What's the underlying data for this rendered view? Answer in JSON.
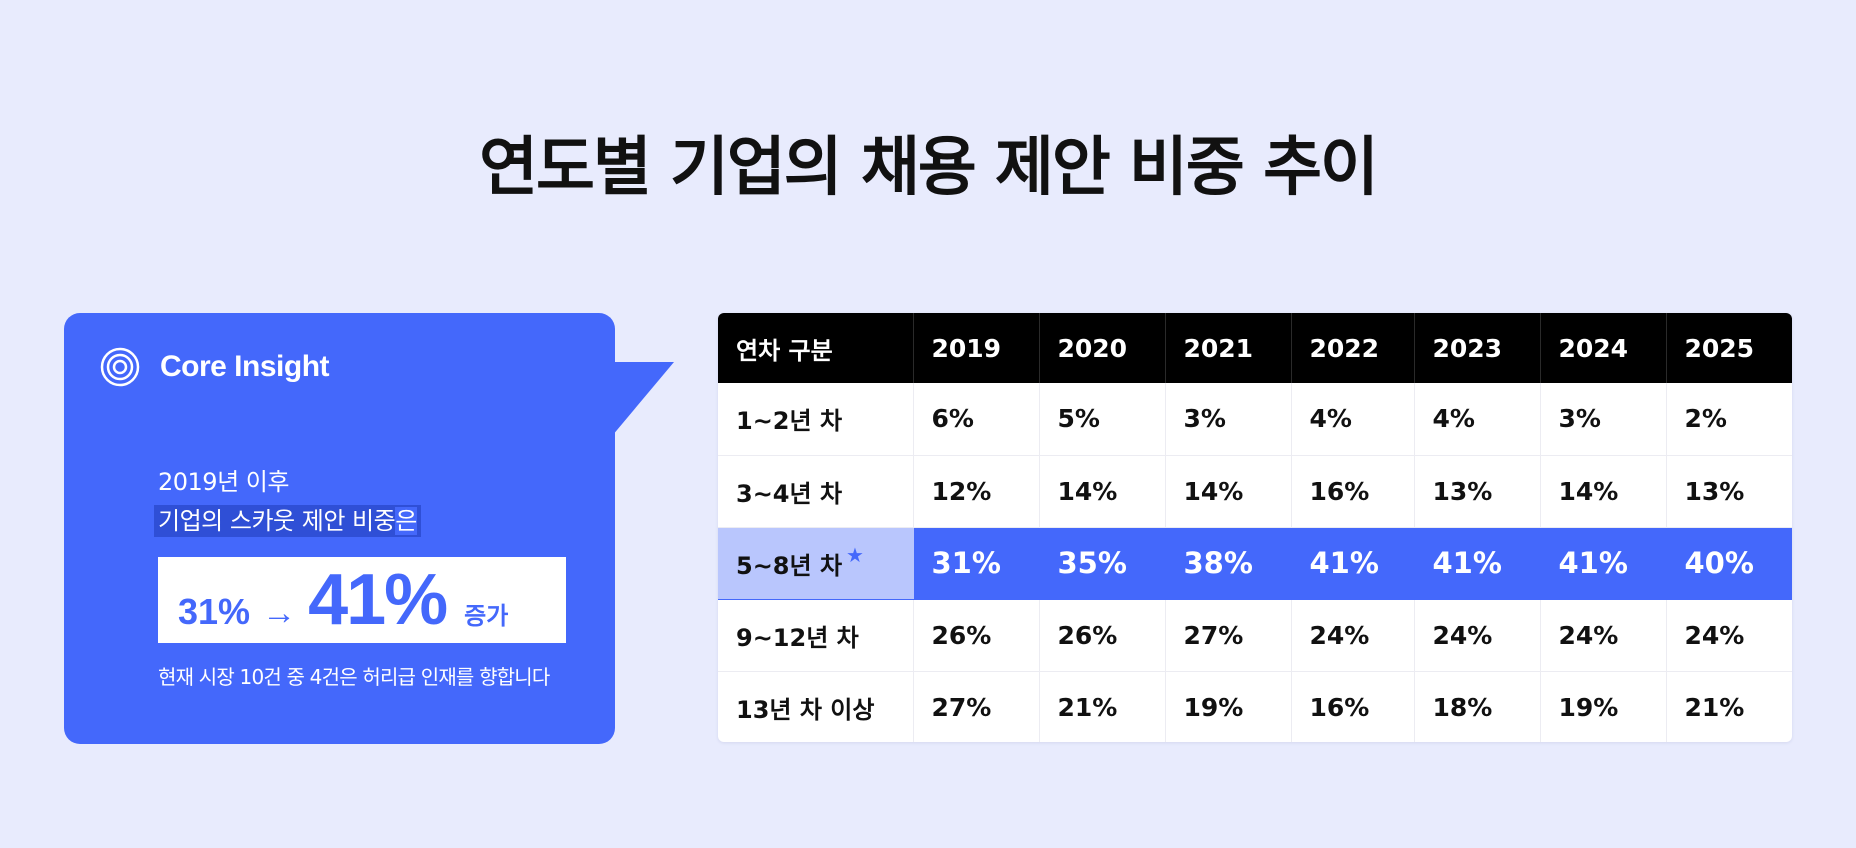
{
  "page": {
    "title": "연도별 기업의 채용 제안 비중 추이"
  },
  "insight": {
    "label": "Core Insight",
    "icon": "concentric-circles-icon",
    "line1": "2019년 이후",
    "line2_highlight": "기업의 스카웃 제안 비중",
    "line2_tail": "은",
    "stat_from": "31%",
    "stat_arrow": "→",
    "stat_to": "41%",
    "stat_suffix": "증가",
    "note": "현재 시장 10건 중 4건은 허리급 인재를 향합니다",
    "colors": {
      "accent": "#4468fb",
      "highlight_text_bg": "#2f4fd6"
    }
  },
  "chart_data": {
    "type": "table",
    "title": "연도별 기업의 채용 제안 비중 추이",
    "columns": [
      "연차 구분",
      "2019",
      "2020",
      "2021",
      "2022",
      "2023",
      "2024",
      "2025"
    ],
    "rows": [
      {
        "label": "1~2년 차",
        "values": [
          "6%",
          "5%",
          "3%",
          "4%",
          "4%",
          "3%",
          "2%"
        ],
        "highlight": false
      },
      {
        "label": "3~4년 차",
        "values": [
          "12%",
          "14%",
          "14%",
          "16%",
          "13%",
          "14%",
          "13%"
        ],
        "highlight": false
      },
      {
        "label": "5~8년 차",
        "values": [
          "31%",
          "35%",
          "38%",
          "41%",
          "41%",
          "41%",
          "40%"
        ],
        "highlight": true,
        "marker": "star-icon"
      },
      {
        "label": "9~12년 차",
        "values": [
          "26%",
          "26%",
          "27%",
          "24%",
          "24%",
          "24%",
          "24%"
        ],
        "highlight": false
      },
      {
        "label": "13년 차 이상",
        "values": [
          "27%",
          "21%",
          "19%",
          "16%",
          "18%",
          "19%",
          "21%"
        ],
        "highlight": false
      }
    ],
    "colors": {
      "header_bg": "#000000",
      "highlight_row": "#4468fb",
      "highlight_label": "#b9c6fd",
      "background": "#e8ebfd"
    }
  }
}
